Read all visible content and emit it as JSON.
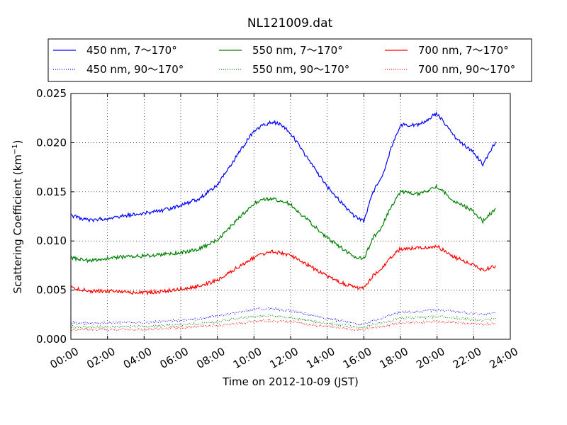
{
  "chart_data": {
    "type": "line",
    "title": "NL121009.dat",
    "xlabel": "Time on 2012-10-09 (JST)",
    "ylabel": "Scattering Coefficient (km",
    "ylabel_sup": "−1",
    "ylabel_end": ")",
    "xlim": [
      0,
      24
    ],
    "ylim": [
      0,
      0.025
    ],
    "x_ticks": [
      0,
      2,
      4,
      6,
      8,
      10,
      12,
      14,
      16,
      18,
      20,
      22,
      24
    ],
    "x_tick_labels": [
      "00:00",
      "02:00",
      "04:00",
      "06:00",
      "08:00",
      "10:00",
      "12:00",
      "14:00",
      "16:00",
      "18:00",
      "20:00",
      "22:00",
      "24:00"
    ],
    "y_ticks": [
      0,
      0.005,
      0.01,
      0.015,
      0.02,
      0.025
    ],
    "y_tick_labels": [
      "0.000",
      "0.005",
      "0.010",
      "0.015",
      "0.020",
      "0.025"
    ],
    "grid": true,
    "legend_position": "top",
    "x_hours": [
      0,
      1,
      2,
      3,
      4,
      5,
      6,
      7,
      8,
      9,
      10,
      10.5,
      11,
      11.5,
      12,
      13,
      14,
      15,
      15.5,
      16,
      16.5,
      17,
      17.5,
      18,
      19,
      20,
      21,
      22,
      22.5,
      23.2
    ],
    "series": [
      {
        "name": "450 nm, 7～170°",
        "color": "#0000ff",
        "style": "solid",
        "values": [
          0.0126,
          0.0121,
          0.0123,
          0.0126,
          0.0128,
          0.0131,
          0.0136,
          0.0143,
          0.0157,
          0.0185,
          0.0212,
          0.0218,
          0.0221,
          0.0218,
          0.021,
          0.0182,
          0.0155,
          0.0135,
          0.0125,
          0.012,
          0.015,
          0.0165,
          0.0195,
          0.0218,
          0.0218,
          0.023,
          0.0205,
          0.019,
          0.0178,
          0.0201
        ]
      },
      {
        "name": "450 nm, 90～170°",
        "color": "#0000ff",
        "style": "dotted",
        "values": [
          0.0017,
          0.0016,
          0.0017,
          0.0017,
          0.0017,
          0.0018,
          0.0019,
          0.0021,
          0.0024,
          0.0027,
          0.003,
          0.0031,
          0.0031,
          0.003,
          0.0029,
          0.0025,
          0.0021,
          0.0018,
          0.0016,
          0.0015,
          0.0019,
          0.0021,
          0.0025,
          0.0028,
          0.0028,
          0.003,
          0.0028,
          0.0026,
          0.0025,
          0.0027
        ]
      },
      {
        "name": "550 nm, 7～170°",
        "color": "#008000",
        "style": "solid",
        "values": [
          0.0083,
          0.008,
          0.0082,
          0.0084,
          0.0085,
          0.0086,
          0.0088,
          0.0092,
          0.0101,
          0.012,
          0.0138,
          0.0142,
          0.0143,
          0.0141,
          0.0137,
          0.012,
          0.0103,
          0.009,
          0.0084,
          0.0082,
          0.0103,
          0.0115,
          0.0135,
          0.015,
          0.0148,
          0.0155,
          0.014,
          0.013,
          0.012,
          0.0133
        ]
      },
      {
        "name": "550 nm, 90～170°",
        "color": "#008000",
        "style": "dotted",
        "values": [
          0.0013,
          0.0012,
          0.0013,
          0.0013,
          0.0013,
          0.0014,
          0.0015,
          0.0016,
          0.0018,
          0.0021,
          0.0023,
          0.0024,
          0.0024,
          0.0023,
          0.0022,
          0.0019,
          0.0016,
          0.0014,
          0.0013,
          0.0012,
          0.0015,
          0.0017,
          0.0019,
          0.0022,
          0.0022,
          0.0023,
          0.0022,
          0.002,
          0.0019,
          0.0021
        ]
      },
      {
        "name": "700 nm, 7～170°",
        "color": "#ff0000",
        "style": "solid",
        "values": [
          0.0053,
          0.0049,
          0.0049,
          0.0048,
          0.0047,
          0.0049,
          0.0051,
          0.0054,
          0.006,
          0.0072,
          0.0083,
          0.0087,
          0.0089,
          0.0088,
          0.0085,
          0.0075,
          0.0064,
          0.0056,
          0.0053,
          0.0052,
          0.0065,
          0.0072,
          0.0084,
          0.0092,
          0.0093,
          0.0095,
          0.0083,
          0.0076,
          0.007,
          0.0075
        ]
      },
      {
        "name": "700 nm, 90～170°",
        "color": "#ff0000",
        "style": "dotted",
        "values": [
          0.001,
          0.001,
          0.001,
          0.001,
          0.001,
          0.0011,
          0.0012,
          0.0013,
          0.0014,
          0.0016,
          0.0018,
          0.0019,
          0.0019,
          0.0018,
          0.0018,
          0.0015,
          0.0013,
          0.0011,
          0.001,
          0.001,
          0.0012,
          0.0013,
          0.0015,
          0.0017,
          0.0017,
          0.0018,
          0.0017,
          0.0016,
          0.0015,
          0.0016
        ]
      }
    ]
  }
}
